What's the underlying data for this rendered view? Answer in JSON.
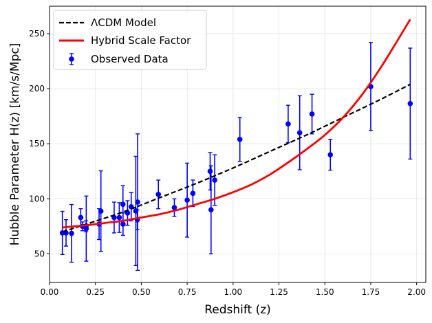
{
  "chart_data": {
    "type": "scatter",
    "title": "",
    "xlabel": "Redshift (z)",
    "ylabel": "Hubble Parameter H(z) [km/s/Mpc]",
    "xlim": [
      0.0,
      2.05
    ],
    "ylim": [
      24,
      275
    ],
    "xticks": [
      0.0,
      0.25,
      0.5,
      0.75,
      1.0,
      1.25,
      1.5,
      1.75,
      2.0
    ],
    "xtick_labels": [
      "0.00",
      "0.25",
      "0.50",
      "0.75",
      "1.00",
      "1.25",
      "1.50",
      "1.75",
      "2.00"
    ],
    "yticks": [
      50,
      100,
      150,
      200,
      250
    ],
    "ytick_labels": [
      "50",
      "100",
      "150",
      "200",
      "250"
    ],
    "grid": true,
    "legend_position": "top-left",
    "legend": [
      "ΛCDM Model",
      "Hybrid Scale Factor",
      "Observed Data"
    ],
    "series": [
      {
        "name": "ΛCDM Model",
        "kind": "line",
        "style": "dashed",
        "color": "#000000",
        "x": [
          0.07,
          0.2,
          0.4,
          0.6,
          0.8,
          1.0,
          1.2,
          1.4,
          1.6,
          1.8,
          1.965
        ],
        "y": [
          70,
          77,
          88,
          101,
          114,
          128,
          143,
          158,
          174,
          190,
          204
        ]
      },
      {
        "name": "Hybrid Scale Factor",
        "kind": "line",
        "style": "solid",
        "color": "#ff0000",
        "x": [
          0.07,
          0.2,
          0.3,
          0.4,
          0.5,
          0.6,
          0.7,
          0.8,
          0.9,
          1.0,
          1.1,
          1.2,
          1.3,
          1.4,
          1.5,
          1.6,
          1.7,
          1.8,
          1.9,
          1.965
        ],
        "y": [
          74,
          76,
          78,
          80,
          83,
          86,
          90,
          95,
          100,
          106,
          113,
          122,
          133,
          145,
          158,
          174,
          194,
          218,
          245,
          263
        ]
      },
      {
        "name": "Observed Data",
        "kind": "errorbar",
        "color": "#0000ff",
        "points": [
          {
            "x": 0.07,
            "y": 69,
            "err": 19.6
          },
          {
            "x": 0.09,
            "y": 69,
            "err": 12
          },
          {
            "x": 0.12,
            "y": 68.6,
            "err": 26.2
          },
          {
            "x": 0.17,
            "y": 83,
            "err": 8
          },
          {
            "x": 0.179,
            "y": 75,
            "err": 4
          },
          {
            "x": 0.199,
            "y": 75,
            "err": 5
          },
          {
            "x": 0.2,
            "y": 72.9,
            "err": 29.6
          },
          {
            "x": 0.27,
            "y": 77,
            "err": 14
          },
          {
            "x": 0.28,
            "y": 88.8,
            "err": 36.6
          },
          {
            "x": 0.352,
            "y": 83,
            "err": 14
          },
          {
            "x": 0.38,
            "y": 83,
            "err": 13.5
          },
          {
            "x": 0.4,
            "y": 95,
            "err": 17
          },
          {
            "x": 0.4004,
            "y": 77,
            "err": 10.2
          },
          {
            "x": 0.425,
            "y": 87.1,
            "err": 11.2
          },
          {
            "x": 0.445,
            "y": 92.8,
            "err": 12.9
          },
          {
            "x": 0.47,
            "y": 89,
            "err": 49.6
          },
          {
            "x": 0.4783,
            "y": 80.9,
            "err": 9
          },
          {
            "x": 0.48,
            "y": 97,
            "err": 62
          },
          {
            "x": 0.593,
            "y": 104,
            "err": 13
          },
          {
            "x": 0.68,
            "y": 92,
            "err": 8
          },
          {
            "x": 0.75,
            "y": 98.8,
            "err": 33.6
          },
          {
            "x": 0.781,
            "y": 105,
            "err": 12
          },
          {
            "x": 0.875,
            "y": 125,
            "err": 17
          },
          {
            "x": 0.88,
            "y": 90,
            "err": 40
          },
          {
            "x": 0.9,
            "y": 117,
            "err": 23
          },
          {
            "x": 1.037,
            "y": 154,
            "err": 20
          },
          {
            "x": 1.3,
            "y": 168,
            "err": 17
          },
          {
            "x": 1.363,
            "y": 160,
            "err": 33.6
          },
          {
            "x": 1.43,
            "y": 177,
            "err": 18
          },
          {
            "x": 1.53,
            "y": 140,
            "err": 14
          },
          {
            "x": 1.75,
            "y": 202,
            "err": 40
          },
          {
            "x": 1.965,
            "y": 186.5,
            "err": 50.4
          }
        ]
      }
    ]
  }
}
